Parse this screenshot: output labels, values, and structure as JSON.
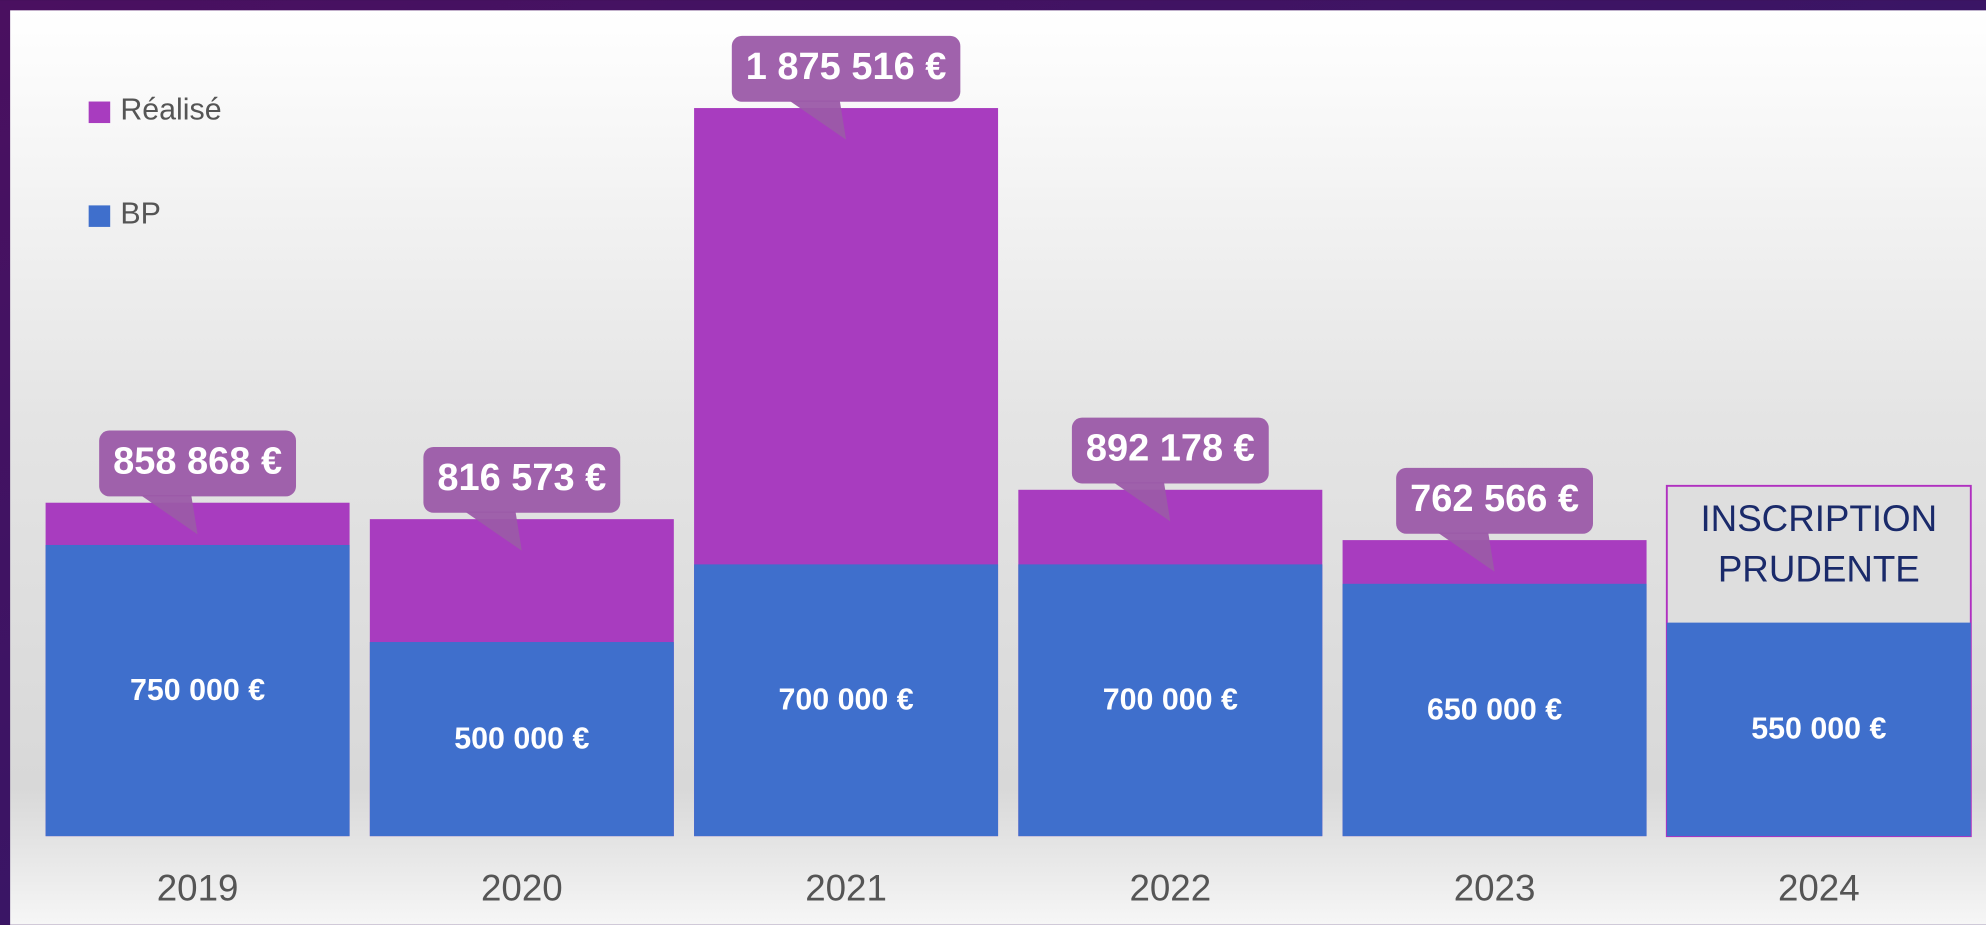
{
  "chart_data": {
    "type": "bar",
    "categories": [
      "2019",
      "2020",
      "2021",
      "2022",
      "2023",
      "2024"
    ],
    "series": [
      {
        "name": "Réalisé",
        "color": "#a83cbf",
        "values": [
          858868,
          816573,
          1875516,
          892178,
          762566,
          null
        ],
        "value_labels": [
          "858 868 €",
          "816 573 €",
          "1 875 516 €",
          "892 178 €",
          "762 566 €",
          null
        ]
      },
      {
        "name": "BP",
        "color": "#3f6fcc",
        "values": [
          750000,
          500000,
          700000,
          700000,
          650000,
          550000
        ],
        "value_labels": [
          "750 000 €",
          "500 000 €",
          "700 000 €",
          "700 000 €",
          "650 000 €",
          "550 000 €"
        ]
      }
    ],
    "annotation": [
      "INSCRIPTION",
      "PRUDENTE"
    ],
    "ylim": [
      0,
      2000000
    ],
    "legend": "top-left"
  }
}
